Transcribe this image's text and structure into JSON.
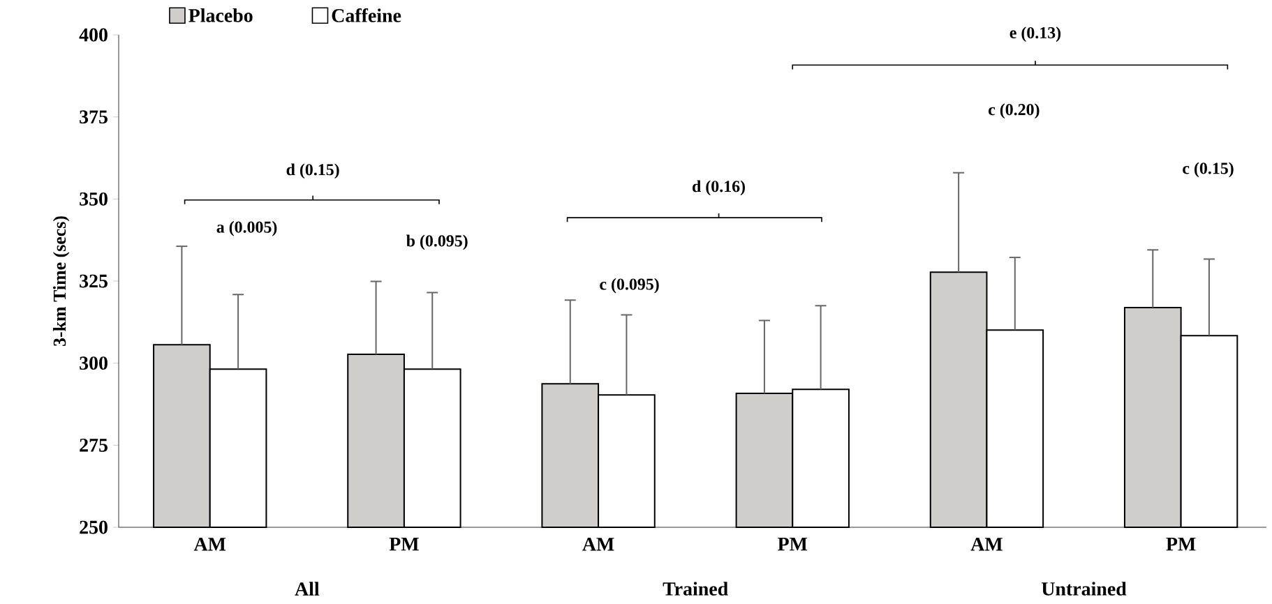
{
  "chart_data": {
    "type": "bar",
    "ylabel": "3-km Time (secs)",
    "categories": [
      "AM",
      "PM",
      "AM",
      "PM",
      "AM",
      "PM"
    ],
    "series": [
      {
        "name": "Placebo",
        "color": "#d0cecb",
        "values": [
          305.6,
          302.7,
          293.7,
          290.8,
          327.7,
          316.9
        ],
        "errors": [
          [
            305.6,
            335.6
          ],
          [
            302.7,
            324.9
          ],
          [
            293.7,
            319.2
          ],
          [
            290.8,
            313.0
          ],
          [
            327.7,
            358.0
          ],
          [
            316.9,
            334.5
          ]
        ]
      },
      {
        "name": "Caffeine",
        "color": "#ffffff",
        "values": [
          298.2,
          298.2,
          290.3,
          292.0,
          310.1,
          308.4
        ],
        "errors": [
          [
            298.2,
            320.9
          ],
          [
            298.2,
            321.5
          ],
          [
            290.3,
            314.7
          ],
          [
            292.0,
            317.5
          ],
          [
            310.1,
            332.2
          ],
          [
            308.4,
            331.7
          ]
        ]
      }
    ],
    "ylim": [
      250,
      400
    ],
    "yticks": [
      250,
      275,
      300,
      325,
      350,
      375,
      400
    ],
    "legend": "top",
    "annotations": [
      "All",
      "Trained",
      "Untrained",
      "d (0.15)",
      "a (0.005)",
      "b (0.095)",
      "d (0.16)",
      "c (0.095)",
      "e (0.13)",
      "c (0.20)",
      "c (0.15)"
    ]
  }
}
